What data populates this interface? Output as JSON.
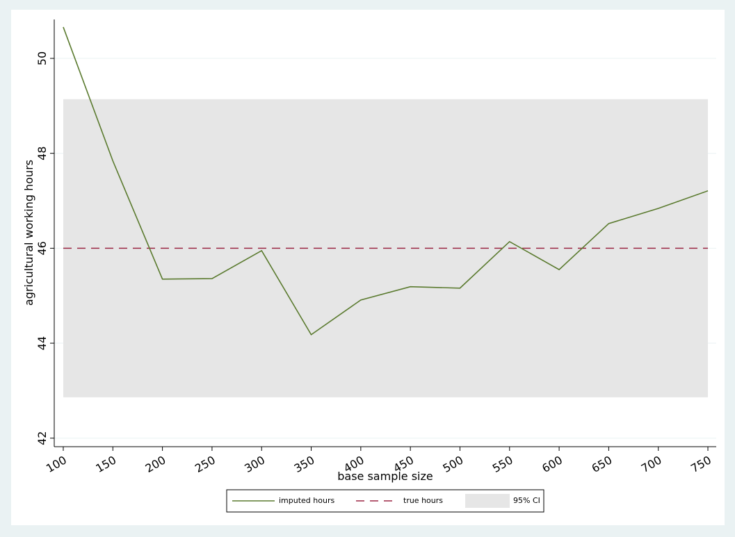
{
  "chart_data": {
    "type": "line",
    "xlabel": "base sample size",
    "ylabel": "agricultural working hours",
    "x": [
      100,
      150,
      200,
      250,
      300,
      350,
      400,
      450,
      500,
      550,
      600,
      650,
      700,
      750
    ],
    "series": [
      {
        "name": "imputed hours",
        "color": "#5a7a2e",
        "values": [
          50.66,
          47.84,
          45.35,
          45.36,
          45.95,
          44.18,
          44.91,
          45.19,
          45.16,
          46.14,
          45.55,
          46.52,
          46.84,
          47.21
        ]
      }
    ],
    "reference_line": {
      "name": "true hours",
      "value": 46,
      "color": "#9b2743",
      "dashed": true
    },
    "band": {
      "name": "95% CI",
      "lower": 42.86,
      "upper": 49.14,
      "color": "#e6e6e6"
    },
    "xlim": [
      90.9,
      758.4
    ],
    "ylim": [
      41.82,
      50.82
    ],
    "xticks": [
      100,
      150,
      200,
      250,
      300,
      350,
      400,
      450,
      500,
      550,
      600,
      650,
      700,
      750
    ],
    "yticks": [
      42,
      44,
      46,
      48,
      50
    ],
    "grid": true,
    "legend_position": "bottom"
  }
}
